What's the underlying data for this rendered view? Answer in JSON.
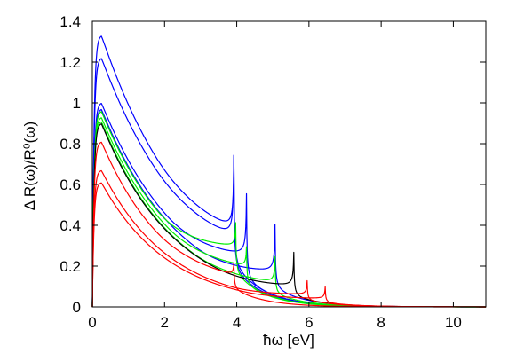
{
  "chart_data": {
    "type": "line",
    "title": "",
    "xlabel": "ħω [eV]",
    "ylabel": "Δ R(ω)/R⁰(ω)",
    "xlim": [
      0,
      10.9
    ],
    "ylim": [
      0,
      1.4
    ],
    "xticks": [
      "0",
      "2",
      "4",
      "6",
      "8",
      "10"
    ],
    "yticks": [
      "0",
      "0.2",
      "0.4",
      "0.6",
      "0.8",
      "1",
      "1.2",
      "1.4"
    ],
    "grid": false,
    "legend": "none",
    "series": [
      {
        "color": "#0000ff",
        "peak": 1.33,
        "peak_x": 0.25,
        "decay": 0.55,
        "resonance_x": 3.92,
        "resonance_y": 0.75,
        "dip": 0.38
      },
      {
        "color": "#0000ff",
        "peak": 1.22,
        "peak_x": 0.25,
        "decay": 0.55,
        "resonance_x": 3.92,
        "resonance_y": 0.75,
        "dip": 0.34
      },
      {
        "color": "#0000ff",
        "peak": 1.0,
        "peak_x": 0.25,
        "decay": 0.62,
        "resonance_x": 4.27,
        "resonance_y": 0.56,
        "dip": 0.25
      },
      {
        "color": "#0000ff",
        "peak": 0.97,
        "peak_x": 0.25,
        "decay": 0.64,
        "resonance_x": 5.06,
        "resonance_y": 0.41,
        "dip": 0.17
      },
      {
        "color": "#00ee00",
        "peak": 0.96,
        "peak_x": 0.25,
        "decay": 0.64,
        "resonance_x": 3.97,
        "resonance_y": 0.42,
        "dip": 0.3
      },
      {
        "color": "#00ee00",
        "peak": 0.93,
        "peak_x": 0.25,
        "decay": 0.66,
        "resonance_x": 4.27,
        "resonance_y": 0.3,
        "dip": 0.2
      },
      {
        "color": "#00ee00",
        "peak": 0.91,
        "peak_x": 0.25,
        "decay": 0.68,
        "resonance_x": 5.06,
        "resonance_y": 0.25,
        "dip": 0.12
      },
      {
        "color": "#000000",
        "peak": 0.9,
        "peak_x": 0.25,
        "decay": 0.68,
        "resonance_x": 5.58,
        "resonance_y": 0.27,
        "dip": 0.1
      },
      {
        "color": "#ff0000",
        "peak": 0.81,
        "peak_x": 0.25,
        "decay": 0.72,
        "resonance_x": 3.92,
        "resonance_y": 0.22,
        "dip": 0.16
      },
      {
        "color": "#ff0000",
        "peak": 0.67,
        "peak_x": 0.25,
        "decay": 0.74,
        "resonance_x": 5.95,
        "resonance_y": 0.13,
        "dip": 0.06
      },
      {
        "color": "#ff0000",
        "peak": 0.61,
        "peak_x": 0.25,
        "decay": 0.74,
        "resonance_x": 6.45,
        "resonance_y": 0.1,
        "dip": 0.04
      }
    ]
  }
}
